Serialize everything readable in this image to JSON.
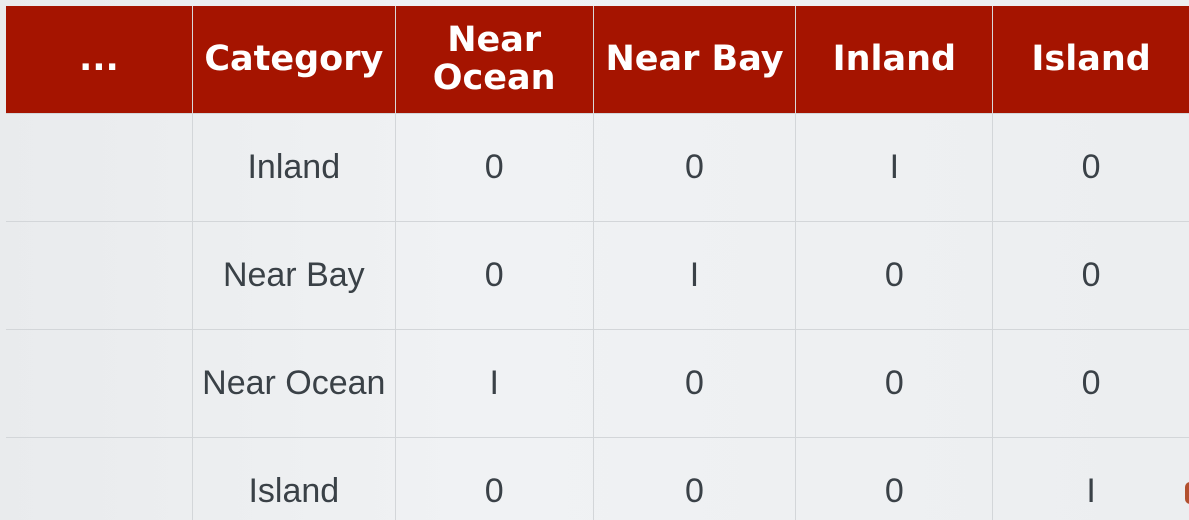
{
  "header": {
    "columns": [
      "...",
      "Category",
      "Near Ocean",
      "Near Bay",
      "Inland",
      "Island"
    ]
  },
  "rows": [
    {
      "category": "Inland",
      "values": [
        "0",
        "0",
        "I",
        "0"
      ]
    },
    {
      "category": "Near Bay",
      "values": [
        "0",
        "I",
        "0",
        "0"
      ]
    },
    {
      "category": "Near Ocean",
      "values": [
        "I",
        "0",
        "0",
        "0"
      ]
    },
    {
      "category": "Island",
      "values": [
        "0",
        "0",
        "0",
        "I"
      ]
    }
  ],
  "colors": {
    "header_bg": "#a51400",
    "header_text": "#ffffff",
    "highlight_value": "#e02a2a",
    "body_text": "#3a4147"
  }
}
